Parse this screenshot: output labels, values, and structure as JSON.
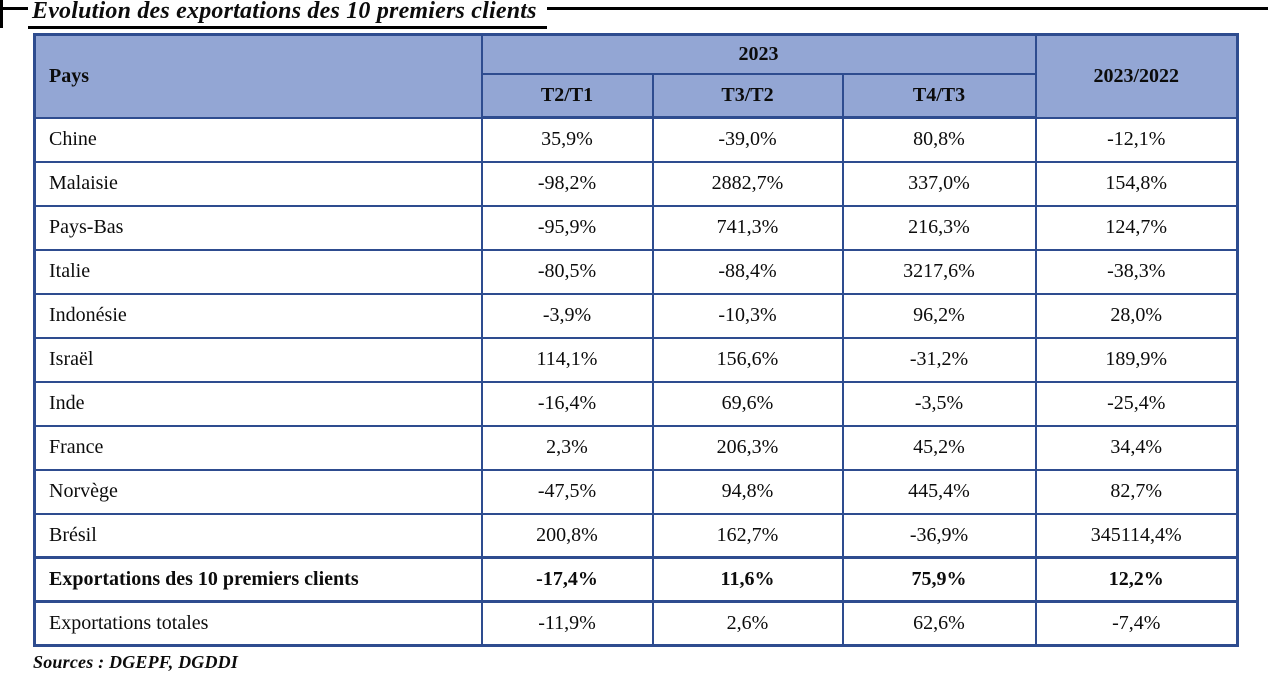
{
  "page": {
    "title": "Evolution des exportations des 10 premiers clients",
    "sources": "Sources : DGEPF, DGDDI"
  },
  "table": {
    "header": {
      "pays": "Pays",
      "year_group": "2023",
      "sub": [
        "T2/T1",
        "T3/T2",
        "T4/T3"
      ],
      "yoy": "2023/2022"
    },
    "rows": [
      {
        "pays": "Chine",
        "t2t1": "35,9%",
        "t3t2": "-39,0%",
        "t4t3": "80,8%",
        "yoy": "-12,1%"
      },
      {
        "pays": "Malaisie",
        "t2t1": "-98,2%",
        "t3t2": "2882,7%",
        "t4t3": "337,0%",
        "yoy": "154,8%"
      },
      {
        "pays": "Pays-Bas",
        "t2t1": "-95,9%",
        "t3t2": "741,3%",
        "t4t3": "216,3%",
        "yoy": "124,7%"
      },
      {
        "pays": "Italie",
        "t2t1": "-80,5%",
        "t3t2": "-88,4%",
        "t4t3": "3217,6%",
        "yoy": "-38,3%"
      },
      {
        "pays": "Indonésie",
        "t2t1": "-3,9%",
        "t3t2": "-10,3%",
        "t4t3": "96,2%",
        "yoy": "28,0%"
      },
      {
        "pays": "Israël",
        "t2t1": "114,1%",
        "t3t2": "156,6%",
        "t4t3": "-31,2%",
        "yoy": "189,9%"
      },
      {
        "pays": "Inde",
        "t2t1": "-16,4%",
        "t3t2": "69,6%",
        "t4t3": "-3,5%",
        "yoy": "-25,4%"
      },
      {
        "pays": "France",
        "t2t1": "2,3%",
        "t3t2": "206,3%",
        "t4t3": "45,2%",
        "yoy": "34,4%"
      },
      {
        "pays": "Norvège",
        "t2t1": "-47,5%",
        "t3t2": "94,8%",
        "t4t3": "445,4%",
        "yoy": "82,7%"
      },
      {
        "pays": "Brésil",
        "t2t1": "200,8%",
        "t3t2": "162,7%",
        "t4t3": "-36,9%",
        "yoy": "345114,4%"
      },
      {
        "pays": "Exportations des 10 premiers clients",
        "t2t1": "-17,4%",
        "t3t2": "11,6%",
        "t4t3": "75,9%",
        "yoy": "12,2%"
      },
      {
        "pays": "Exportations totales",
        "t2t1": "-11,9%",
        "t3t2": "2,6%",
        "t4t3": "62,6%",
        "yoy": "-7,4%"
      }
    ]
  },
  "colors": {
    "header_fill": "#93a6d4",
    "border": "#2e4c8f"
  }
}
